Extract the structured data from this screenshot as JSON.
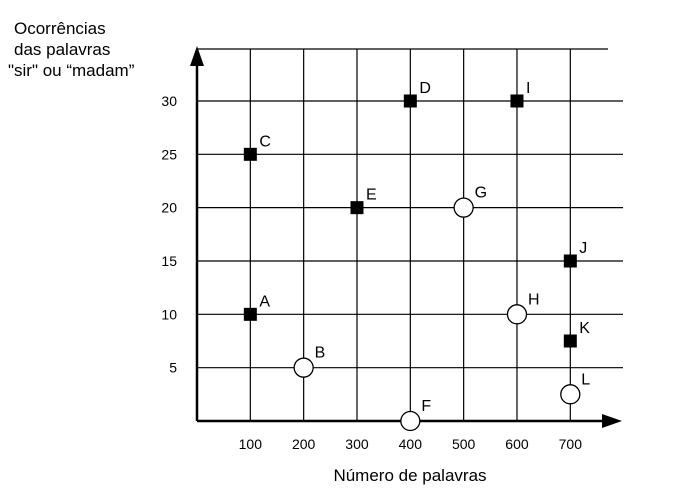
{
  "chart_data": {
    "type": "scatter",
    "title": "",
    "ylabel_lines": [
      "Ocorrências",
      "das palavras",
      "\"sir\" ou “madam”"
    ],
    "xlabel": "Número de palavras",
    "xlim": [
      0,
      780
    ],
    "ylim": [
      0,
      34
    ],
    "x_ticks": [
      100,
      200,
      300,
      400,
      500,
      600,
      700
    ],
    "y_ticks": [
      5,
      10,
      15,
      20,
      25,
      30
    ],
    "x_tick_labels": [
      "100",
      "200",
      "300",
      "400",
      "500",
      "600",
      "700"
    ],
    "y_tick_labels": [
      "5",
      "10",
      "15",
      "20",
      "25",
      "30"
    ],
    "grid": true,
    "points": [
      {
        "label": "A",
        "x": 100,
        "y": 10,
        "marker": "square"
      },
      {
        "label": "B",
        "x": 200,
        "y": 5,
        "marker": "circle"
      },
      {
        "label": "C",
        "x": 100,
        "y": 25,
        "marker": "square"
      },
      {
        "label": "D",
        "x": 400,
        "y": 30,
        "marker": "square"
      },
      {
        "label": "E",
        "x": 300,
        "y": 20,
        "marker": "square"
      },
      {
        "label": "F",
        "x": 400,
        "y": 0,
        "marker": "circle"
      },
      {
        "label": "G",
        "x": 500,
        "y": 20,
        "marker": "circle"
      },
      {
        "label": "H",
        "x": 600,
        "y": 10,
        "marker": "circle"
      },
      {
        "label": "I",
        "x": 600,
        "y": 30,
        "marker": "square"
      },
      {
        "label": "J",
        "x": 700,
        "y": 15,
        "marker": "square"
      },
      {
        "label": "K",
        "x": 700,
        "y": 7.5,
        "marker": "square"
      },
      {
        "label": "L",
        "x": 700,
        "y": 2.5,
        "marker": "circle"
      }
    ]
  }
}
